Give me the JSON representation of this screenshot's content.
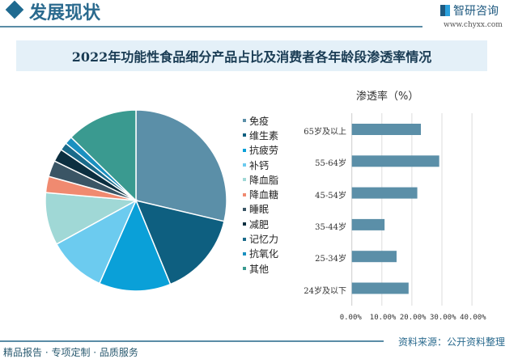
{
  "header": {
    "section_title": "发展现状",
    "logo_text": "智研咨询",
    "url": "www.chyxx.com"
  },
  "title": "2022年功能性食品细分产品占比及消费者各年龄段渗透率情况",
  "footer": {
    "slogan": "精品报告 · 专项定制 · 品质服务",
    "source": "资料来源：公开资料整理"
  },
  "chart_data": [
    {
      "type": "pie",
      "legend_position": "right",
      "categories": [
        "免疫",
        "维生素",
        "抗疲劳",
        "补钙",
        "降血脂",
        "降血糖",
        "睡眠",
        "减肥",
        "记忆力",
        "抗氧化",
        "其他"
      ],
      "values": [
        28.7,
        15.1,
        12.8,
        10.4,
        9.4,
        2.9,
        2.9,
        2.3,
        1.4,
        1.4,
        12.7
      ],
      "colors": [
        "#5b8fa8",
        "#0e5f80",
        "#0aa0d8",
        "#6ccbef",
        "#a0d8d6",
        "#f08a70",
        "#3a5565",
        "#0c2f40",
        "#1a6a8a",
        "#1a90c0",
        "#3a9a90"
      ]
    },
    {
      "type": "bar",
      "orientation": "horizontal",
      "title": "渗透率（%）",
      "categories": [
        "65岁及以上",
        "55-64岁",
        "45-54岁",
        "35-44岁",
        "25-34岁",
        "24岁及以下"
      ],
      "values": [
        23.0,
        29.1,
        21.8,
        10.9,
        14.9,
        18.9
      ],
      "xlim": [
        0,
        40
      ],
      "x_ticks": [
        "0.00%",
        "10.00%",
        "20.00%",
        "30.00%",
        "40.00%"
      ],
      "grid": true,
      "color": "#5b8fa8"
    }
  ]
}
